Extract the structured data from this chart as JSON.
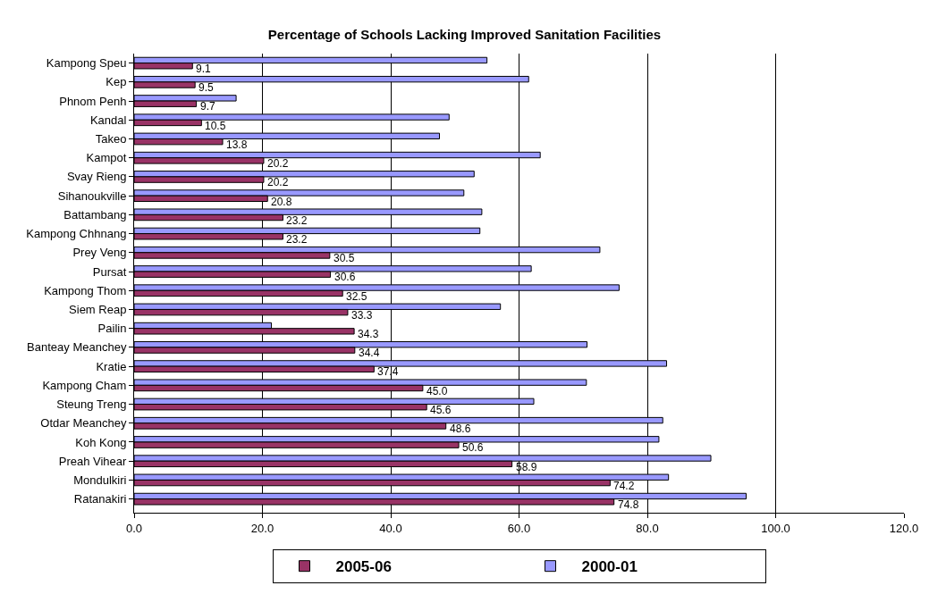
{
  "chart_data": {
    "type": "bar",
    "orientation": "horizontal",
    "title": "Percentage of Schools Lacking Improved Sanitation Facilities",
    "categories": [
      "Kampong Speu",
      "Kep",
      "Phnom Penh",
      "Kandal",
      "Takeo",
      "Kampot",
      "Svay Rieng",
      "Sihanoukville",
      "Battambang",
      "Kampong Chhnang",
      "Prey Veng",
      "Pursat",
      "Kampong Thom",
      "Siem Reap",
      "Pailin",
      "Banteay Meanchey",
      "Kratie",
      "Kampong Cham",
      "Steung Treng",
      "Otdar Meanchey",
      "Koh Kong",
      "Preah Vihear",
      "Mondulkiri",
      "Ratanakiri"
    ],
    "series": [
      {
        "name": "2005-06",
        "color": "#993366",
        "values": [
          9.1,
          9.5,
          9.7,
          10.5,
          13.8,
          20.2,
          20.2,
          20.8,
          23.2,
          23.2,
          30.5,
          30.6,
          32.5,
          33.3,
          34.3,
          34.4,
          37.4,
          45.0,
          45.6,
          48.6,
          50.6,
          58.9,
          74.2,
          74.8
        ],
        "value_labels": [
          "9.1",
          "9.5",
          "9.7",
          "10.5",
          "13.8",
          "20.2",
          "20.2",
          "20.8",
          "23.2",
          "23.2",
          "30.5",
          "30.6",
          "32.5",
          "33.3",
          "34.3",
          "34.4",
          "37.4",
          "45.0",
          "45.6",
          "48.6",
          "50.6",
          "58.9",
          "74.2",
          "74.8"
        ]
      },
      {
        "name": "2000-01",
        "color": "#9999ff",
        "values": [
          55,
          61.5,
          15.9,
          49.1,
          47.6,
          63.3,
          53.0,
          51.4,
          54.2,
          53.9,
          72.6,
          61.9,
          75.6,
          57.1,
          21.4,
          70.6,
          83.0,
          70.5,
          62.3,
          82.4,
          81.8,
          89.9,
          83.3,
          95.4
        ]
      }
    ],
    "xlim": [
      0,
      120
    ],
    "xticks": [
      {
        "value": 0,
        "label": "0.0"
      },
      {
        "value": 20,
        "label": "20.0"
      },
      {
        "value": 40,
        "label": "40.0"
      },
      {
        "value": 60,
        "label": "60.0"
      },
      {
        "value": 80,
        "label": "80.0"
      },
      {
        "value": 100,
        "label": "100.0"
      },
      {
        "value": 120,
        "label": "120.0"
      }
    ],
    "grid": "x",
    "legend": "bottom"
  }
}
